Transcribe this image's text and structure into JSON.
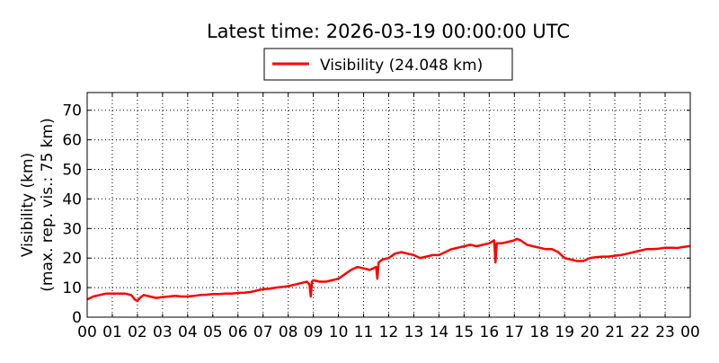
{
  "chart_data": {
    "type": "line",
    "title": "Latest time: 2026-03-19 00:00:00 UTC",
    "legend": {
      "placement": "top-center",
      "entries": [
        "Visibility (24.048 km)"
      ]
    },
    "ylabel_line1": "Visibility (km)",
    "ylabel_line2": "(max. rep. vis.: 75 km)",
    "xlabel": "",
    "xlim": [
      0,
      24
    ],
    "ylim": [
      0,
      76
    ],
    "grid": true,
    "x_tick_labels": [
      "00",
      "01",
      "02",
      "03",
      "04",
      "05",
      "06",
      "07",
      "08",
      "09",
      "10",
      "11",
      "12",
      "13",
      "14",
      "15",
      "16",
      "17",
      "18",
      "19",
      "20",
      "21",
      "22",
      "23",
      "00"
    ],
    "y_ticks": [
      0,
      10,
      20,
      30,
      40,
      50,
      60,
      70
    ],
    "series": [
      {
        "name": "Visibility (24.048 km)",
        "color": "#ff0000",
        "x": [
          0.0,
          0.25,
          0.5,
          0.75,
          1.0,
          1.25,
          1.5,
          1.75,
          1.9,
          2.0,
          2.1,
          2.25,
          2.5,
          2.75,
          3.0,
          3.25,
          3.5,
          3.75,
          4.0,
          4.25,
          4.5,
          4.75,
          5.0,
          5.25,
          5.5,
          5.75,
          6.0,
          6.25,
          6.5,
          6.75,
          7.0,
          7.25,
          7.5,
          7.75,
          8.0,
          8.25,
          8.5,
          8.75,
          8.85,
          8.9,
          8.95,
          9.0,
          9.25,
          9.5,
          9.75,
          10.0,
          10.25,
          10.5,
          10.75,
          11.0,
          11.25,
          11.5,
          11.55,
          11.6,
          11.75,
          12.0,
          12.25,
          12.5,
          12.75,
          13.0,
          13.25,
          13.5,
          13.75,
          14.0,
          14.25,
          14.5,
          14.75,
          15.0,
          15.25,
          15.5,
          15.75,
          16.0,
          16.2,
          16.25,
          16.3,
          16.5,
          16.75,
          17.0,
          17.1,
          17.25,
          17.5,
          17.75,
          18.0,
          18.25,
          18.5,
          18.75,
          19.0,
          19.25,
          19.5,
          19.75,
          20.0,
          20.25,
          20.5,
          20.75,
          21.0,
          21.25,
          21.5,
          21.75,
          22.0,
          22.25,
          22.5,
          22.75,
          23.0,
          23.25,
          23.5,
          23.75,
          24.0
        ],
        "y": [
          6.0,
          7.0,
          7.5,
          8.0,
          8.0,
          8.0,
          8.0,
          7.5,
          6.0,
          5.5,
          6.5,
          7.5,
          7.0,
          6.5,
          6.8,
          7.0,
          7.2,
          7.0,
          7.0,
          7.2,
          7.5,
          7.6,
          7.8,
          7.8,
          8.0,
          8.0,
          8.2,
          8.3,
          8.5,
          9.0,
          9.5,
          9.6,
          10.0,
          10.2,
          10.5,
          11.0,
          11.5,
          12.0,
          11.0,
          7.0,
          12.0,
          12.5,
          12.0,
          12.0,
          12.5,
          13.0,
          14.5,
          16.0,
          17.0,
          16.5,
          16.0,
          17.0,
          13.0,
          18.5,
          19.5,
          20.0,
          21.5,
          22.0,
          21.5,
          21.0,
          20.0,
          20.5,
          21.0,
          21.0,
          22.0,
          23.0,
          23.5,
          24.0,
          24.5,
          24.0,
          24.5,
          25.0,
          26.0,
          18.5,
          25.0,
          25.0,
          25.5,
          26.0,
          26.5,
          26.0,
          24.5,
          24.0,
          23.5,
          23.0,
          23.0,
          22.0,
          20.0,
          19.5,
          19.0,
          19.0,
          20.0,
          20.3,
          20.5,
          20.5,
          20.8,
          21.0,
          21.5,
          22.0,
          22.5,
          23.0,
          23.0,
          23.2,
          23.5,
          23.5,
          23.4,
          23.8,
          24.048
        ]
      }
    ]
  }
}
